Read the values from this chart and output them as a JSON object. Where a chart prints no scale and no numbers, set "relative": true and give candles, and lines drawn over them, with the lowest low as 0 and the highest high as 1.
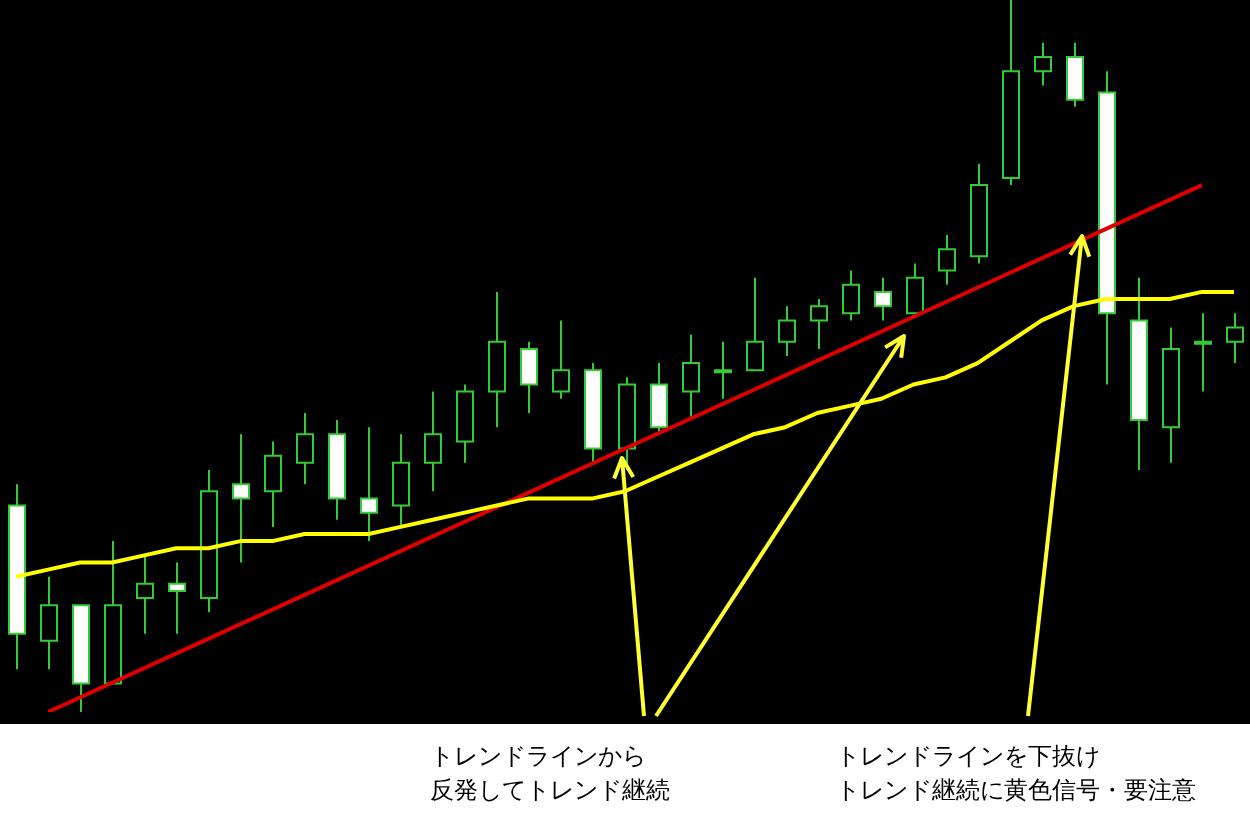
{
  "chart_data": {
    "type": "candlestick",
    "relative": true,
    "categories": [
      null,
      null,
      null,
      null,
      null,
      null,
      null,
      null,
      null,
      null,
      null,
      null,
      null,
      null,
      null,
      null,
      null,
      null,
      null,
      null,
      null,
      null,
      null,
      null,
      null,
      null,
      null,
      null,
      null,
      null,
      null,
      null,
      null,
      null,
      null,
      null,
      null,
      null,
      null
    ],
    "ohlc": [
      [
        0.29,
        0.32,
        0.06,
        0.11
      ],
      [
        0.1,
        0.19,
        0.06,
        0.15
      ],
      [
        0.15,
        0.15,
        0.0,
        0.04
      ],
      [
        0.04,
        0.24,
        0.04,
        0.15
      ],
      [
        0.16,
        0.22,
        0.11,
        0.18
      ],
      [
        0.18,
        0.21,
        0.11,
        0.17
      ],
      [
        0.16,
        0.34,
        0.14,
        0.31
      ],
      [
        0.32,
        0.39,
        0.21,
        0.3
      ],
      [
        0.31,
        0.38,
        0.26,
        0.36
      ],
      [
        0.35,
        0.42,
        0.32,
        0.39
      ],
      [
        0.39,
        0.41,
        0.27,
        0.3
      ],
      [
        0.3,
        0.4,
        0.24,
        0.28
      ],
      [
        0.29,
        0.39,
        0.26,
        0.35
      ],
      [
        0.35,
        0.45,
        0.31,
        0.39
      ],
      [
        0.38,
        0.46,
        0.35,
        0.45
      ],
      [
        0.45,
        0.59,
        0.4,
        0.52
      ],
      [
        0.51,
        0.52,
        0.42,
        0.46
      ],
      [
        0.45,
        0.55,
        0.44,
        0.48
      ],
      [
        0.48,
        0.49,
        0.35,
        0.37
      ],
      [
        0.37,
        0.47,
        0.34,
        0.46
      ],
      [
        0.46,
        0.49,
        0.39,
        0.4
      ],
      [
        0.45,
        0.53,
        0.41,
        0.49
      ],
      [
        0.48,
        0.52,
        0.44,
        0.48
      ],
      [
        0.48,
        0.61,
        0.48,
        0.52
      ],
      [
        0.52,
        0.57,
        0.5,
        0.55
      ],
      [
        0.55,
        0.58,
        0.51,
        0.57
      ],
      [
        0.56,
        0.62,
        0.55,
        0.6
      ],
      [
        0.59,
        0.61,
        0.55,
        0.57
      ],
      [
        0.56,
        0.63,
        0.56,
        0.61
      ],
      [
        0.62,
        0.67,
        0.6,
        0.65
      ],
      [
        0.64,
        0.77,
        0.63,
        0.74
      ],
      [
        0.75,
        1.0,
        0.74,
        0.9
      ],
      [
        0.9,
        0.94,
        0.88,
        0.92
      ],
      [
        0.92,
        0.94,
        0.85,
        0.86
      ],
      [
        0.87,
        0.9,
        0.46,
        0.56
      ],
      [
        0.55,
        0.61,
        0.34,
        0.41
      ],
      [
        0.4,
        0.54,
        0.35,
        0.51
      ],
      [
        0.52,
        0.56,
        0.45,
        0.52
      ],
      [
        0.52,
        0.56,
        0.49,
        0.54
      ]
    ],
    "series": [
      {
        "type": "line",
        "color": "#ffff00",
        "values": [
          0.19,
          0.2,
          0.21,
          0.21,
          0.22,
          0.23,
          0.23,
          0.24,
          0.24,
          0.25,
          0.25,
          0.25,
          0.26,
          0.27,
          0.28,
          0.29,
          0.3,
          0.3,
          0.3,
          0.31,
          0.33,
          0.35,
          0.37,
          0.39,
          0.4,
          0.42,
          0.43,
          0.44,
          0.46,
          0.47,
          0.49,
          0.52,
          0.55,
          0.57,
          0.58,
          0.58,
          0.58,
          0.59,
          0.59
        ]
      },
      {
        "type": "line",
        "color": "#dd0000",
        "values": [
          null,
          0.0,
          null,
          null,
          null,
          null,
          null,
          null,
          null,
          null,
          null,
          null,
          null,
          null,
          null,
          null,
          null,
          null,
          null,
          null,
          null,
          null,
          null,
          null,
          null,
          null,
          null,
          null,
          null,
          null,
          null,
          null,
          null,
          null,
          null,
          null,
          null,
          0.74,
          null
        ]
      }
    ],
    "annotations": [
      "トレンドラインから反発してトレンド継続",
      "トレンドラインを下抜けトレンド継続に黄色信号・要注意"
    ]
  }
}
